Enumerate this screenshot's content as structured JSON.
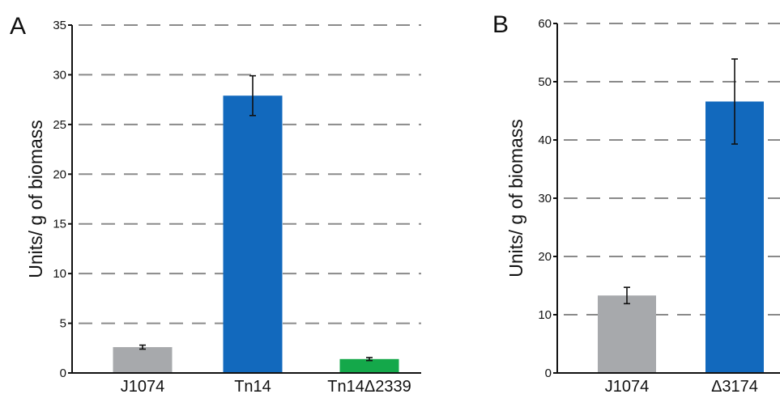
{
  "chart_data": [
    {
      "panel": "A",
      "type": "bar",
      "ylabel": "Units/ g of biomass",
      "ylim": [
        0,
        35
      ],
      "yticks": [
        "0",
        "5",
        "10",
        "15",
        "20",
        "25",
        "30",
        "35"
      ],
      "grid": true,
      "categories": [
        "J1074",
        "Tn14",
        "Tn14Δ2339"
      ],
      "values": [
        2.6,
        27.9,
        1.4
      ],
      "errors": [
        0.2,
        2.0,
        0.15
      ],
      "colors": [
        "#a7a9ac",
        "#1269bd",
        "#14a84a"
      ]
    },
    {
      "panel": "B",
      "type": "bar",
      "ylabel": "Units/ g of biomass",
      "ylim": [
        0,
        60
      ],
      "yticks": [
        "0",
        "10",
        "20",
        "30",
        "40",
        "50",
        "60"
      ],
      "grid": true,
      "categories": [
        "J1074",
        "Δ3174"
      ],
      "values": [
        13.3,
        46.6
      ],
      "errors": [
        1.4,
        7.3
      ],
      "colors": [
        "#a7a9ac",
        "#1269bd"
      ]
    }
  ]
}
